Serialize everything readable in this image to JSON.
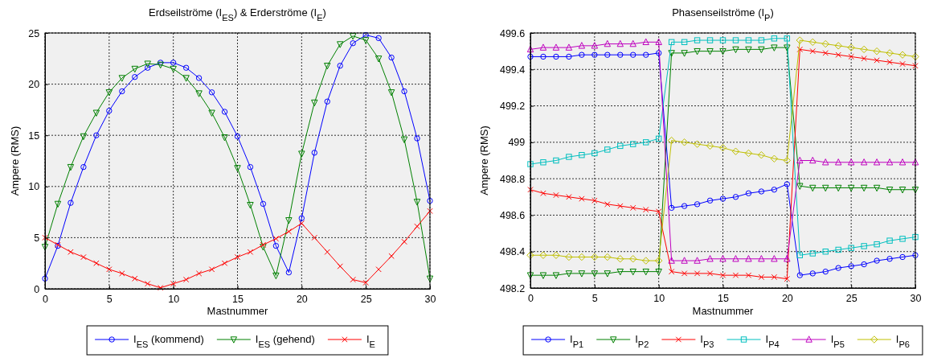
{
  "chart_data": [
    {
      "type": "line",
      "title": "Erdseilströme (I$_{ES}$) & Erderströme (I$_{E}$)",
      "xlabel": "Mastnummer",
      "ylabel": "Ampere (RMS)",
      "x": [
        0,
        1,
        2,
        3,
        4,
        5,
        6,
        7,
        8,
        9,
        10,
        11,
        12,
        13,
        14,
        15,
        16,
        17,
        18,
        19,
        20,
        21,
        22,
        23,
        24,
        25,
        26,
        27,
        28,
        29,
        30
      ],
      "xlim": [
        0,
        30
      ],
      "xticks": [
        0,
        5,
        10,
        15,
        20,
        25,
        30
      ],
      "ylim": [
        0,
        25
      ],
      "yticks": [
        0,
        5,
        10,
        15,
        20,
        25
      ],
      "grid": true,
      "legend": "bottom",
      "line_style": "solid",
      "series": [
        {
          "name": "I$_{ES}$ (kommend)",
          "color": "#0000ff",
          "marker": "circle",
          "values": [
            1.0,
            4.2,
            8.4,
            11.9,
            15.0,
            17.4,
            19.3,
            20.7,
            21.6,
            22.1,
            22.1,
            21.6,
            20.6,
            19.2,
            17.3,
            14.9,
            11.9,
            8.3,
            4.2,
            1.6,
            6.9,
            13.3,
            18.3,
            21.8,
            24.0,
            24.8,
            24.5,
            22.6,
            19.3,
            14.7,
            8.6
          ]
        },
        {
          "name": "I$_{ES}$ (gehend)",
          "color": "#008000",
          "marker": "triangle-down",
          "values": [
            4.1,
            8.3,
            11.9,
            14.9,
            17.2,
            19.2,
            20.6,
            21.5,
            22.0,
            21.9,
            21.5,
            20.6,
            19.1,
            17.2,
            14.8,
            11.8,
            8.2,
            4.1,
            1.3,
            6.7,
            13.2,
            18.2,
            21.8,
            23.9,
            24.7,
            24.3,
            22.5,
            19.2,
            14.6,
            8.5,
            1.0
          ]
        },
        {
          "name": "I$_{E}$",
          "color": "#ff0000",
          "marker": "cross",
          "values": [
            5.0,
            4.3,
            3.6,
            3.1,
            2.5,
            1.9,
            1.5,
            1.0,
            0.5,
            0.1,
            0.5,
            0.9,
            1.5,
            1.9,
            2.5,
            3.1,
            3.6,
            4.3,
            4.9,
            5.6,
            6.4,
            5.0,
            3.6,
            2.2,
            0.9,
            0.6,
            1.9,
            3.2,
            4.6,
            6.1,
            7.6
          ]
        }
      ]
    },
    {
      "type": "line",
      "title": "Phasenseilströme (I$_{P}$)",
      "xlabel": "Mastnummer",
      "ylabel": "Ampere (RMS)",
      "x": [
        0,
        1,
        2,
        3,
        4,
        5,
        6,
        7,
        8,
        9,
        10,
        11,
        12,
        13,
        14,
        15,
        16,
        17,
        18,
        19,
        20,
        21,
        22,
        23,
        24,
        25,
        26,
        27,
        28,
        29,
        30
      ],
      "xlim": [
        0,
        30
      ],
      "xticks": [
        0,
        5,
        10,
        15,
        20,
        25,
        30
      ],
      "ylim": [
        498.2,
        499.6
      ],
      "yticks": [
        498.2,
        498.4,
        498.6,
        498.8,
        499,
        499.2,
        499.4,
        499.6
      ],
      "grid": true,
      "legend": "bottom",
      "line_style": "solid",
      "series": [
        {
          "name": "I$_{P1}$",
          "color": "#0000ff",
          "marker": "circle",
          "values": [
            499.47,
            499.47,
            499.47,
            499.47,
            499.48,
            499.48,
            499.48,
            499.48,
            499.48,
            499.48,
            499.49,
            498.64,
            498.65,
            498.66,
            498.68,
            498.69,
            498.7,
            498.72,
            498.73,
            498.74,
            498.77,
            498.27,
            498.28,
            498.29,
            498.31,
            498.32,
            498.33,
            498.35,
            498.36,
            498.37,
            498.38
          ]
        },
        {
          "name": "I$_{P2}$",
          "color": "#008000",
          "marker": "triangle-down",
          "values": [
            498.27,
            498.27,
            498.27,
            498.28,
            498.28,
            498.28,
            498.28,
            498.29,
            498.29,
            498.29,
            498.29,
            499.49,
            499.49,
            499.5,
            499.5,
            499.5,
            499.51,
            499.51,
            499.51,
            499.52,
            499.52,
            498.76,
            498.75,
            498.75,
            498.75,
            498.75,
            498.75,
            498.75,
            498.74,
            498.74,
            498.74
          ]
        },
        {
          "name": "I$_{P3}$",
          "color": "#ff0000",
          "marker": "cross",
          "values": [
            498.74,
            498.72,
            498.71,
            498.7,
            498.69,
            498.68,
            498.66,
            498.65,
            498.64,
            498.63,
            498.62,
            498.29,
            498.28,
            498.28,
            498.28,
            498.27,
            498.27,
            498.27,
            498.26,
            498.26,
            498.25,
            499.51,
            499.5,
            499.49,
            499.48,
            499.47,
            499.46,
            499.45,
            499.44,
            499.43,
            499.42
          ]
        },
        {
          "name": "I$_{P4}$",
          "color": "#00bfbf",
          "marker": "square",
          "values": [
            498.88,
            498.89,
            498.9,
            498.92,
            498.93,
            498.94,
            498.96,
            498.98,
            498.99,
            499.0,
            499.02,
            499.55,
            499.55,
            499.56,
            499.56,
            499.56,
            499.56,
            499.56,
            499.56,
            499.57,
            499.57,
            498.38,
            498.39,
            498.4,
            498.41,
            498.42,
            498.43,
            498.44,
            498.46,
            498.47,
            498.48
          ]
        },
        {
          "name": "I$_{P5}$",
          "color": "#bf00bf",
          "marker": "triangle",
          "values": [
            499.51,
            499.52,
            499.52,
            499.52,
            499.53,
            499.53,
            499.54,
            499.54,
            499.54,
            499.55,
            499.55,
            498.35,
            498.35,
            498.35,
            498.36,
            498.36,
            498.36,
            498.36,
            498.36,
            498.36,
            498.36,
            498.9,
            498.9,
            498.89,
            498.89,
            498.89,
            498.89,
            498.89,
            498.89,
            498.89,
            498.89
          ]
        },
        {
          "name": "I$_{P6}$",
          "color": "#bfbf00",
          "marker": "diamond",
          "values": [
            498.38,
            498.38,
            498.38,
            498.37,
            498.37,
            498.37,
            498.37,
            498.36,
            498.36,
            498.35,
            498.35,
            499.01,
            499.0,
            498.99,
            498.98,
            498.97,
            498.95,
            498.94,
            498.93,
            498.91,
            498.9,
            499.56,
            499.55,
            499.54,
            499.53,
            499.52,
            499.51,
            499.5,
            499.49,
            499.48,
            499.47
          ]
        }
      ]
    }
  ]
}
